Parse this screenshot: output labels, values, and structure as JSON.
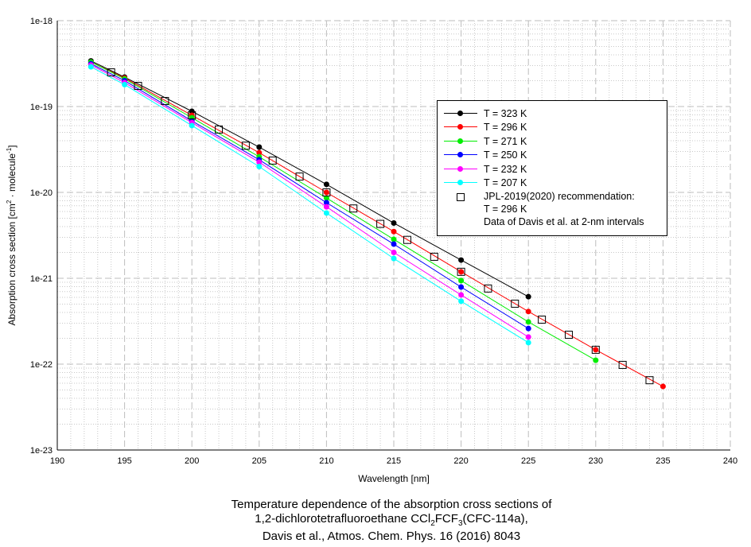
{
  "chart_data": {
    "type": "line",
    "xlabel": "Wavelength [nm]",
    "ylabel": "Absorption cross section [cm2 · molecule-1]",
    "ylabel_parts": {
      "pre": "Absorption cross section [cm",
      "sup1": "2",
      "mid": " · molecule",
      "sup2": "-1",
      "post": "]"
    },
    "xlim": [
      190,
      240
    ],
    "ylim": [
      1e-23,
      1e-18
    ],
    "yscale": "log",
    "grid": true,
    "legend_position": "upper-right",
    "x_ticks": [
      "190",
      "195",
      "200",
      "205",
      "210",
      "215",
      "220",
      "225",
      "230",
      "235",
      "240"
    ],
    "y_ticks": [
      "1e-18",
      "1e-19",
      "1e-20",
      "1e-21",
      "1e-22",
      "1e-23"
    ],
    "series": [
      {
        "name": "T = 323 K",
        "color": "#000000",
        "x": [
          192.5,
          195,
          200,
          205,
          210,
          215,
          220,
          225
        ],
        "values": [
          3.4e-19,
          2.2e-19,
          8.8e-20,
          3.37e-20,
          1.24e-20,
          4.4e-21,
          1.63e-21,
          6.1e-22
        ]
      },
      {
        "name": "T = 296 K",
        "color": "#ff0000",
        "x": [
          192.5,
          195,
          200,
          205,
          210,
          215,
          220,
          225,
          230,
          235
        ],
        "values": [
          3.3e-19,
          2.15e-19,
          7.9e-20,
          2.9e-20,
          1e-20,
          3.5e-21,
          1.19e-21,
          4.1e-22,
          1.47e-22,
          5.5e-23
        ]
      },
      {
        "name": "T = 271 K",
        "color": "#00ee00",
        "x": [
          192.5,
          195,
          200,
          205,
          210,
          215,
          220,
          225,
          230
        ],
        "values": [
          3.3e-19,
          2.1e-19,
          7.4e-20,
          2.6e-20,
          8.6e-21,
          2.84e-21,
          9.4e-22,
          3.1e-22,
          1.11e-22
        ]
      },
      {
        "name": "T = 250 K",
        "color": "#0000ff",
        "x": [
          192.5,
          195,
          200,
          205,
          210,
          215,
          220,
          225
        ],
        "values": [
          3.15e-19,
          2e-19,
          6.8e-20,
          2.4e-20,
          7.6e-21,
          2.5e-21,
          7.9e-22,
          2.6e-22
        ]
      },
      {
        "name": "T = 232 K",
        "color": "#ff00ff",
        "x": [
          192.5,
          195,
          200,
          205,
          210,
          215,
          220,
          225
        ],
        "values": [
          3.05e-19,
          1.9e-19,
          6.5e-20,
          2.25e-20,
          6.8e-21,
          2e-21,
          6.4e-22,
          2.07e-22
        ]
      },
      {
        "name": "T = 207 K",
        "color": "#00ffff",
        "x": [
          192.5,
          195,
          200,
          205,
          210,
          215,
          220,
          225
        ],
        "values": [
          2.9e-19,
          1.8e-19,
          6e-20,
          2e-20,
          5.75e-21,
          1.7e-21,
          5.4e-22,
          1.78e-22
        ]
      }
    ],
    "reference": {
      "name_lines": [
        "JPL-2019(2020) recommendation:",
        "T = 296 K",
        "Data of Davis et al. at 2-nm intervals"
      ],
      "x": [
        194,
        196,
        198,
        200,
        202,
        204,
        206,
        208,
        210,
        212,
        214,
        216,
        218,
        220,
        222,
        224,
        226,
        228,
        230,
        232,
        234
      ],
      "values": [
        2.5e-19,
        1.74e-19,
        1.16e-19,
        7.9e-20,
        5.4e-20,
        3.5e-20,
        2.35e-20,
        1.53e-20,
        1e-20,
        6.5e-21,
        4.3e-21,
        2.8e-21,
        1.78e-21,
        1.19e-21,
        7.6e-22,
        5.06e-22,
        3.3e-22,
        2.2e-22,
        1.47e-22,
        9.8e-23,
        6.5e-23
      ]
    },
    "caption": {
      "line1": "Temperature dependence of the absorption cross sections of",
      "line2_pre": "1,2-dichlorotetrafluoroethane CCl",
      "line2_sub1": "2",
      "line2_mid": "FCF",
      "line2_sub2": "3",
      "line2_post": "(CFC-114a),",
      "line3": "Davis et al., Atmos. Chem. Phys. 16 (2016) 8043"
    }
  }
}
